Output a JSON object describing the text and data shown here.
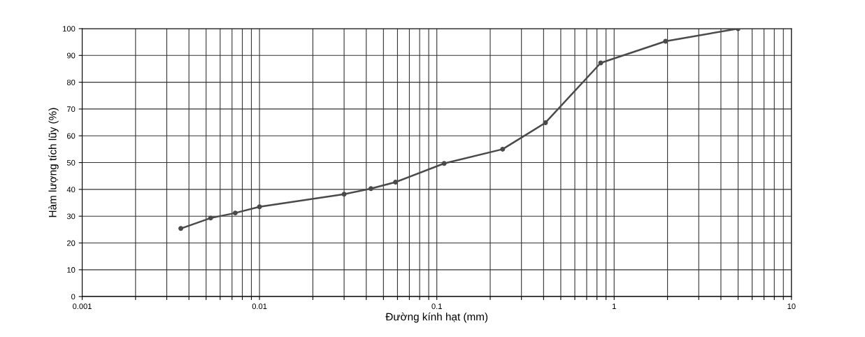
{
  "chart_data": {
    "type": "line",
    "xlabel": "Đường kính hạt (mm)",
    "ylabel": "Hàm lượng tích lũy (%)",
    "log": "x",
    "grid": true,
    "marker": "circle",
    "line_style": "solid",
    "xlim": [
      0.001,
      10
    ],
    "ylim": [
      0,
      100
    ],
    "xticks": [
      {
        "value": 0.001,
        "label": "0.001"
      },
      {
        "value": 0.002,
        "label": null
      },
      {
        "value": 0.003,
        "label": null
      },
      {
        "value": 0.004,
        "label": null
      },
      {
        "value": 0.005,
        "label": null
      },
      {
        "value": 0.006,
        "label": null
      },
      {
        "value": 0.007,
        "label": null
      },
      {
        "value": 0.008,
        "label": null
      },
      {
        "value": 0.009,
        "label": null
      },
      {
        "value": 0.01,
        "label": "0.01"
      },
      {
        "value": 0.02,
        "label": null
      },
      {
        "value": 0.03,
        "label": null
      },
      {
        "value": 0.04,
        "label": null
      },
      {
        "value": 0.05,
        "label": null
      },
      {
        "value": 0.06,
        "label": null
      },
      {
        "value": 0.07,
        "label": null
      },
      {
        "value": 0.08,
        "label": null
      },
      {
        "value": 0.09,
        "label": null
      },
      {
        "value": 0.1,
        "label": "0.1"
      },
      {
        "value": 0.2,
        "label": null
      },
      {
        "value": 0.3,
        "label": null
      },
      {
        "value": 0.4,
        "label": null
      },
      {
        "value": 0.5,
        "label": null
      },
      {
        "value": 0.6,
        "label": null
      },
      {
        "value": 0.7,
        "label": null
      },
      {
        "value": 0.8,
        "label": null
      },
      {
        "value": 0.9,
        "label": null
      },
      {
        "value": 1,
        "label": "1"
      },
      {
        "value": 2,
        "label": null
      },
      {
        "value": 3,
        "label": null
      },
      {
        "value": 4,
        "label": null
      },
      {
        "value": 5,
        "label": null
      },
      {
        "value": 6,
        "label": null
      },
      {
        "value": 7,
        "label": null
      },
      {
        "value": 8,
        "label": null
      },
      {
        "value": 9,
        "label": null
      },
      {
        "value": 10,
        "label": "10"
      }
    ],
    "yticks": [
      0,
      10,
      20,
      30,
      40,
      50,
      60,
      70,
      80,
      90,
      100
    ],
    "series": [
      {
        "color": "#4a4a4a",
        "x": [
          0.0036,
          0.0053,
          0.0073,
          0.01,
          0.03,
          0.0425,
          0.0585,
          0.11,
          0.235,
          0.41,
          0.84,
          1.95,
          5.0
        ],
        "values": [
          25.4,
          29.3,
          31.2,
          33.5,
          38.2,
          40.3,
          42.7,
          49.7,
          55,
          64.9,
          87.2,
          95.3,
          100
        ]
      }
    ]
  }
}
